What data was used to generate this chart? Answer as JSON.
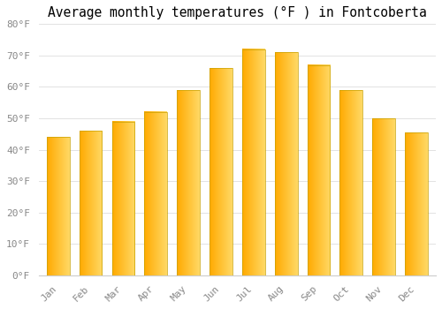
{
  "title": "Average monthly temperatures (°F ) in Fontcoberta",
  "months": [
    "Jan",
    "Feb",
    "Mar",
    "Apr",
    "May",
    "Jun",
    "Jul",
    "Aug",
    "Sep",
    "Oct",
    "Nov",
    "Dec"
  ],
  "values": [
    44,
    46,
    49,
    52,
    59,
    66,
    72,
    71,
    67,
    59,
    50,
    45.5
  ],
  "bar_color_left": "#FFAA00",
  "bar_color_right": "#FFD966",
  "bar_edge_color": "#C8A000",
  "ylim": [
    0,
    80
  ],
  "yticks": [
    0,
    10,
    20,
    30,
    40,
    50,
    60,
    70,
    80
  ],
  "ytick_labels": [
    "0°F",
    "10°F",
    "20°F",
    "30°F",
    "40°F",
    "50°F",
    "60°F",
    "70°F",
    "80°F"
  ],
  "background_color": "#FFFFFF",
  "grid_color": "#DDDDDD",
  "title_fontsize": 10.5,
  "tick_fontsize": 8,
  "bar_width": 0.7
}
